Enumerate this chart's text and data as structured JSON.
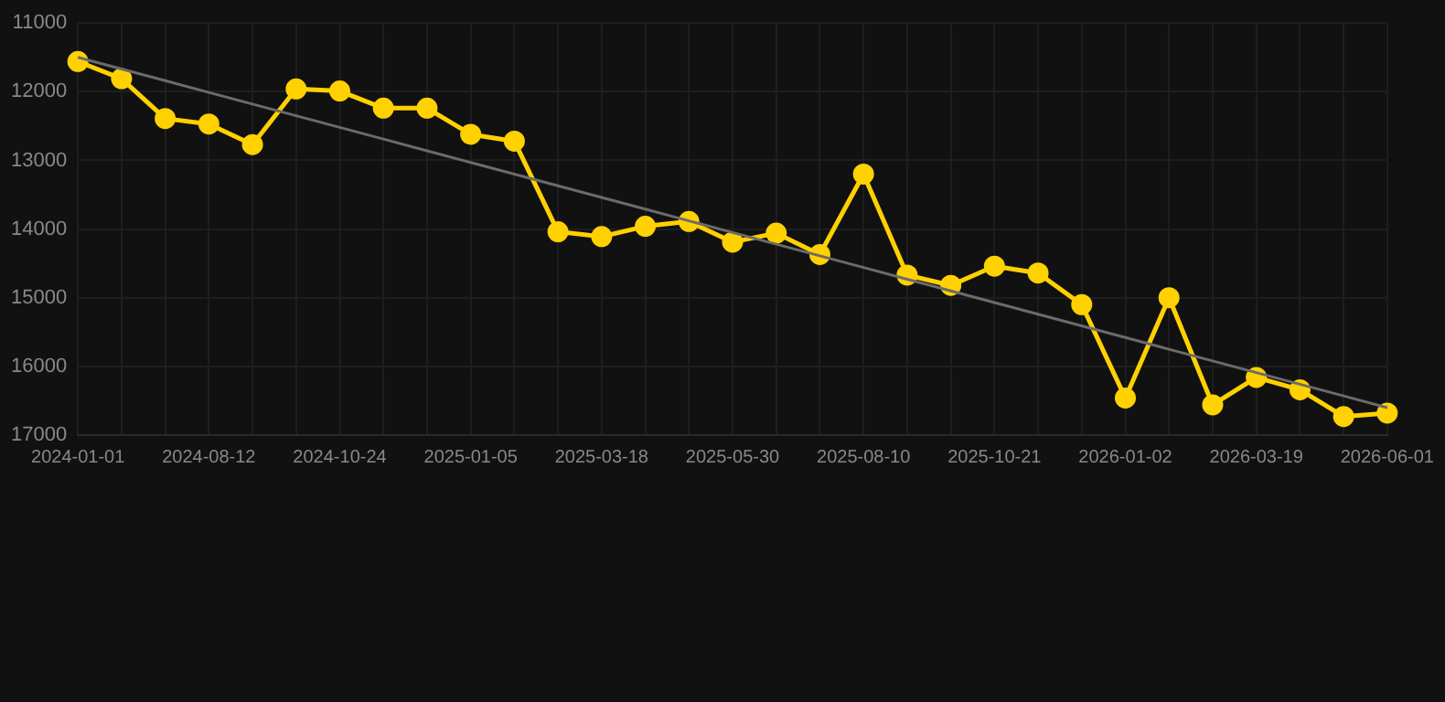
{
  "chart_data": {
    "type": "line",
    "categories": [
      "2024-01-01",
      null,
      null,
      "2024-08-12",
      null,
      null,
      "2024-10-24",
      null,
      null,
      "2025-01-05",
      null,
      null,
      "2025-03-18",
      null,
      null,
      "2025-05-30",
      null,
      null,
      "2025-08-10",
      null,
      null,
      "2025-10-21",
      null,
      null,
      "2026-01-02",
      null,
      null,
      "2026-03-19",
      null,
      null,
      "2026-06-01"
    ],
    "series": [
      {
        "color": "#ffd100",
        "marker": "circle",
        "values": [
          11560,
          11810,
          12390,
          12470,
          12770,
          11960,
          11990,
          12240,
          12240,
          12620,
          12720,
          14040,
          14110,
          13960,
          13890,
          14190,
          14060,
          14370,
          13200,
          14670,
          14820,
          14540,
          14640,
          15100,
          16460,
          15000,
          16560,
          16160,
          16340,
          16730,
          16680
        ]
      },
      {
        "type": "line",
        "color": "#6b6b6b",
        "marker": "none",
        "values": [
          11500,
          11670,
          11840,
          12010,
          12180,
          12350,
          12520,
          12690,
          12860,
          13030,
          13200,
          13370,
          13540,
          13710,
          13880,
          14050,
          14220,
          14390,
          14560,
          14730,
          14900,
          15070,
          15240,
          15410,
          15580,
          15750,
          15920,
          16090,
          16260,
          16430,
          16600
        ]
      }
    ],
    "ylim": [
      17000,
      11000
    ],
    "yticks": [
      11000,
      12000,
      13000,
      14000,
      15000,
      16000,
      17000
    ],
    "grid": true,
    "legend": false
  }
}
